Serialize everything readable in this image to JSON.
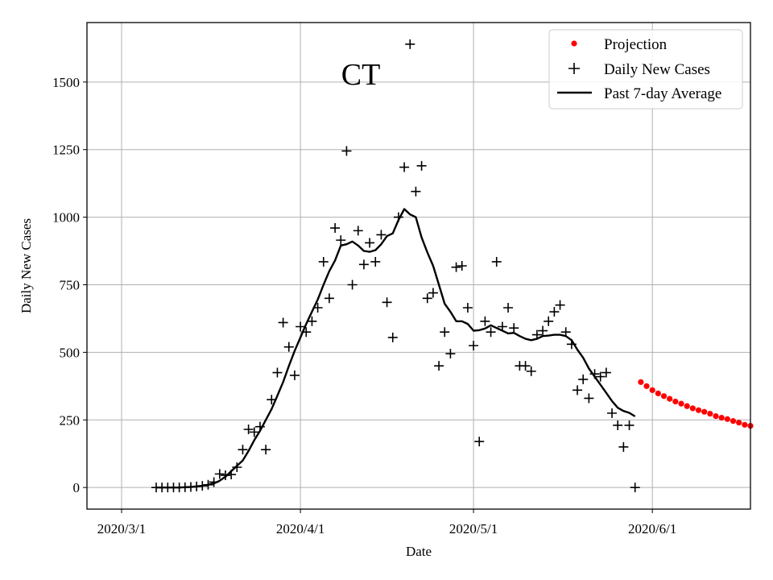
{
  "chart_data": {
    "type": "scatter",
    "title": "CT",
    "xlabel": "Date",
    "ylabel": "Daily New Cases",
    "x_domain_days": [
      -6,
      109
    ],
    "ylim": [
      -80,
      1720
    ],
    "grid": true,
    "x_ticks": [
      {
        "day": 0,
        "label": "2020/3/1"
      },
      {
        "day": 31,
        "label": "2020/4/1"
      },
      {
        "day": 61,
        "label": "2020/5/1"
      },
      {
        "day": 92,
        "label": "2020/6/1"
      }
    ],
    "y_ticks": [
      0,
      250,
      500,
      750,
      1000,
      1250,
      1500
    ],
    "legend_position": "top-right",
    "series": [
      {
        "name": "Projection",
        "marker": "dot",
        "color": "#ff0000",
        "x": [
          90,
          91,
          92,
          93,
          94,
          95,
          96,
          97,
          98,
          99,
          100,
          101,
          102,
          103,
          104,
          105,
          106,
          107,
          108,
          109
        ],
        "values": [
          390,
          375,
          360,
          348,
          338,
          328,
          318,
          310,
          301,
          293,
          286,
          280,
          273,
          264,
          258,
          253,
          246,
          240,
          232,
          228
        ]
      },
      {
        "name": "Daily New Cases",
        "marker": "plus",
        "color": "#000000",
        "x": [
          6,
          7,
          8,
          9,
          10,
          11,
          12,
          13,
          14,
          15,
          16,
          17,
          18,
          19,
          20,
          21,
          22,
          23,
          24,
          25,
          26,
          27,
          28,
          29,
          30,
          31,
          32,
          33,
          34,
          35,
          36,
          37,
          38,
          39,
          40,
          41,
          42,
          43,
          44,
          45,
          46,
          47,
          48,
          49,
          50,
          51,
          52,
          53,
          54,
          55,
          56,
          57,
          58,
          59,
          60,
          61,
          62,
          63,
          64,
          65,
          66,
          67,
          68,
          69,
          70,
          71,
          72,
          73,
          74,
          75,
          76,
          77,
          78,
          79,
          80,
          81,
          82,
          83,
          84,
          85,
          86,
          87,
          88,
          89
        ],
        "values": [
          0,
          0,
          0,
          0,
          0,
          1,
          2,
          4,
          6,
          10,
          20,
          50,
          45,
          48,
          75,
          140,
          215,
          205,
          225,
          140,
          325,
          425,
          610,
          520,
          415,
          595,
          575,
          615,
          665,
          835,
          700,
          960,
          915,
          1245,
          750,
          950,
          825,
          905,
          835,
          935,
          685,
          555,
          1000,
          1185,
          1640,
          1095,
          1190,
          700,
          720,
          450,
          575,
          495,
          815,
          820,
          665,
          525,
          170,
          615,
          575,
          835,
          595,
          665,
          590,
          450,
          450,
          430,
          565,
          580,
          615,
          650,
          675,
          575,
          530,
          360,
          400,
          330,
          420,
          410,
          425,
          275,
          230,
          150,
          230,
          0
        ]
      },
      {
        "name": "Past 7-day Average",
        "marker": "line",
        "color": "#000000",
        "x": [
          6,
          7,
          8,
          9,
          10,
          11,
          12,
          13,
          14,
          15,
          16,
          17,
          18,
          19,
          20,
          21,
          22,
          23,
          24,
          25,
          26,
          27,
          28,
          29,
          30,
          31,
          32,
          33,
          34,
          35,
          36,
          37,
          38,
          39,
          40,
          41,
          42,
          43,
          44,
          45,
          46,
          47,
          48,
          49,
          50,
          51,
          52,
          53,
          54,
          55,
          56,
          57,
          58,
          59,
          60,
          61,
          62,
          63,
          64,
          65,
          66,
          67,
          68,
          69,
          70,
          71,
          72,
          73,
          74,
          75,
          76,
          77,
          78,
          79,
          80,
          81,
          82,
          83,
          84,
          85,
          86,
          87,
          88,
          89
        ],
        "values": [
          0,
          0,
          0,
          0,
          0,
          1,
          2,
          4,
          6,
          10,
          15,
          25,
          40,
          60,
          80,
          100,
          135,
          175,
          210,
          250,
          290,
          340,
          390,
          450,
          505,
          555,
          605,
          650,
          695,
          750,
          800,
          840,
          895,
          900,
          910,
          895,
          875,
          872,
          878,
          900,
          930,
          940,
          990,
          1030,
          1010,
          1000,
          925,
          870,
          820,
          750,
          680,
          650,
          615,
          615,
          605,
          580,
          582,
          588,
          600,
          590,
          580,
          570,
          572,
          560,
          550,
          545,
          550,
          560,
          562,
          565,
          565,
          560,
          545,
          510,
          480,
          440,
          410,
          380,
          350,
          320,
          295,
          283,
          276,
          263
        ]
      }
    ]
  }
}
